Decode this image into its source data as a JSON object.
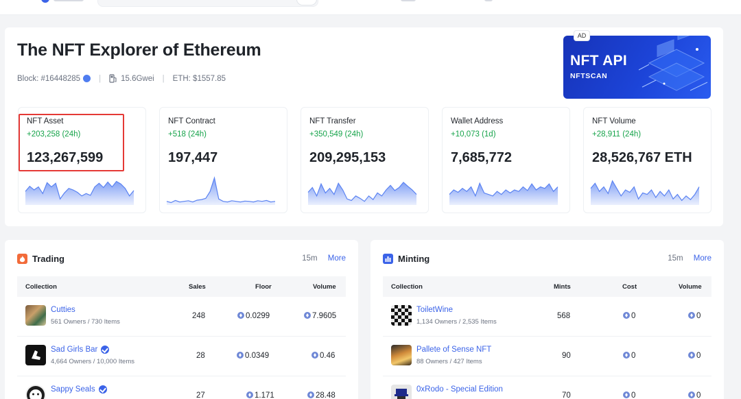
{
  "colors": {
    "accent": "#3b63e8",
    "positive": "#16a34a",
    "highlight_box": "#e53935",
    "ad_background": "#1c44d8",
    "sparkline": "#5b83f2"
  },
  "hero": {
    "title": "The NFT Explorer of Ethereum",
    "block": "Block: #16448285",
    "gas": "15.6Gwei",
    "eth_price": "ETH: $1557.85",
    "separator": "|"
  },
  "ad": {
    "badge": "AD",
    "title": "NFT API",
    "brand": "NFTSCAN"
  },
  "stats": [
    {
      "label": "NFT Asset",
      "change": "+203,258 (24h)",
      "value": "123,267,599",
      "trend": [
        0.45,
        0.62,
        0.5,
        0.6,
        0.38,
        0.74,
        0.6,
        0.72,
        0.2,
        0.4,
        0.55,
        0.5,
        0.42,
        0.3,
        0.38,
        0.32,
        0.6,
        0.72,
        0.58,
        0.76,
        0.6,
        0.78,
        0.7,
        0.55,
        0.3,
        0.48
      ]
    },
    {
      "label": "NFT Contract",
      "change": "+518 (24h)",
      "value": "197,447",
      "trend": [
        0.12,
        0.08,
        0.15,
        0.1,
        0.12,
        0.14,
        0.1,
        0.16,
        0.18,
        0.22,
        0.45,
        0.9,
        0.2,
        0.12,
        0.1,
        0.14,
        0.12,
        0.1,
        0.13,
        0.12,
        0.1,
        0.14,
        0.12,
        0.15,
        0.1,
        0.12
      ]
    },
    {
      "label": "NFT Transfer",
      "change": "+350,549 (24h)",
      "value": "209,295,153",
      "trend": [
        0.42,
        0.58,
        0.3,
        0.7,
        0.4,
        0.55,
        0.35,
        0.72,
        0.5,
        0.2,
        0.15,
        0.3,
        0.22,
        0.12,
        0.3,
        0.18,
        0.4,
        0.3,
        0.5,
        0.65,
        0.48,
        0.58,
        0.75,
        0.62,
        0.5,
        0.35
      ]
    },
    {
      "label": "Wallet Address",
      "change": "+10,073 (1d)",
      "value": "7,685,772",
      "trend": [
        0.35,
        0.5,
        0.42,
        0.55,
        0.45,
        0.6,
        0.3,
        0.72,
        0.4,
        0.35,
        0.3,
        0.45,
        0.35,
        0.5,
        0.4,
        0.5,
        0.45,
        0.6,
        0.48,
        0.7,
        0.5,
        0.6,
        0.55,
        0.7,
        0.45,
        0.6
      ]
    },
    {
      "label": "NFT Volume",
      "change": "+28,911 (24h)",
      "value": "28,526,767 ETH",
      "trend": [
        0.55,
        0.72,
        0.45,
        0.6,
        0.38,
        0.8,
        0.55,
        0.3,
        0.5,
        0.42,
        0.6,
        0.2,
        0.4,
        0.35,
        0.5,
        0.25,
        0.45,
        0.3,
        0.5,
        0.2,
        0.35,
        0.15,
        0.3,
        0.18,
        0.35,
        0.6
      ]
    }
  ],
  "trading": {
    "title": "Trading",
    "timeframe": "15m",
    "more": "More",
    "columns": [
      "Collection",
      "Sales",
      "Floor",
      "Volume"
    ],
    "rows": [
      {
        "name": "Cutties",
        "sub": "561 Owners / 730 Items",
        "sales": "248",
        "floor": "0.0299",
        "volume": "7.9605",
        "verified": false
      },
      {
        "name": "Sad Girls Bar",
        "sub": "4,664 Owners / 10,000 Items",
        "sales": "28",
        "floor": "0.0349",
        "volume": "0.46",
        "verified": true
      },
      {
        "name": "Sappy Seals",
        "sub": "",
        "sales": "27",
        "floor": "1.171",
        "volume": "28.48",
        "verified": true
      }
    ]
  },
  "minting": {
    "title": "Minting",
    "timeframe": "15m",
    "more": "More",
    "columns": [
      "Collection",
      "Mints",
      "Cost",
      "Volume"
    ],
    "rows": [
      {
        "name": "ToiletWine",
        "sub": "1,134 Owners / 2,535 Items",
        "mints": "568",
        "cost": "0",
        "volume": "0"
      },
      {
        "name": "Pallete of Sense NFT",
        "sub": "88 Owners / 427 Items",
        "mints": "90",
        "cost": "0",
        "volume": "0"
      },
      {
        "name": "0xRodo - Special Edition",
        "sub": "",
        "mints": "70",
        "cost": "0",
        "volume": "0"
      }
    ]
  }
}
